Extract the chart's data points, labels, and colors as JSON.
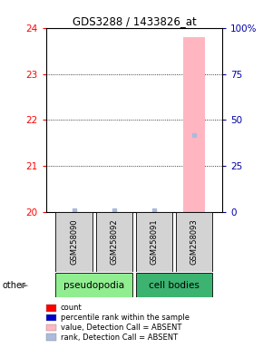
{
  "title": "GDS3288 / 1433826_at",
  "samples": [
    "GSM258090",
    "GSM258092",
    "GSM258091",
    "GSM258093"
  ],
  "groups": [
    "pseudopodia",
    "pseudopodia",
    "cell bodies",
    "cell bodies"
  ],
  "ylim_left": [
    20,
    24
  ],
  "ylim_right": [
    0,
    100
  ],
  "yticks_left": [
    20,
    21,
    22,
    23,
    24
  ],
  "yticks_right": [
    0,
    25,
    50,
    75,
    100
  ],
  "values": [
    null,
    null,
    null,
    23.8
  ],
  "ranks": [
    1.0,
    1.0,
    1.0,
    42.0
  ],
  "detection_calls": [
    "ABSENT",
    "ABSENT",
    "ABSENT",
    "ABSENT"
  ],
  "bar_color_absent": "#FFB6C1",
  "rank_color_absent": "#AABBDD",
  "group_colors": {
    "pseudopodia": "#90EE90",
    "cell bodies": "#3CB371"
  },
  "background_color": "#FFFFFF",
  "left_tick_color": "#FF0000",
  "right_tick_color": "#0000AA",
  "legend_items": [
    {
      "label": "count",
      "color": "#FF0000"
    },
    {
      "label": "percentile rank within the sample",
      "color": "#0000CC"
    },
    {
      "label": "value, Detection Call = ABSENT",
      "color": "#FFB6C1"
    },
    {
      "label": "rank, Detection Call = ABSENT",
      "color": "#AABBDD"
    }
  ]
}
